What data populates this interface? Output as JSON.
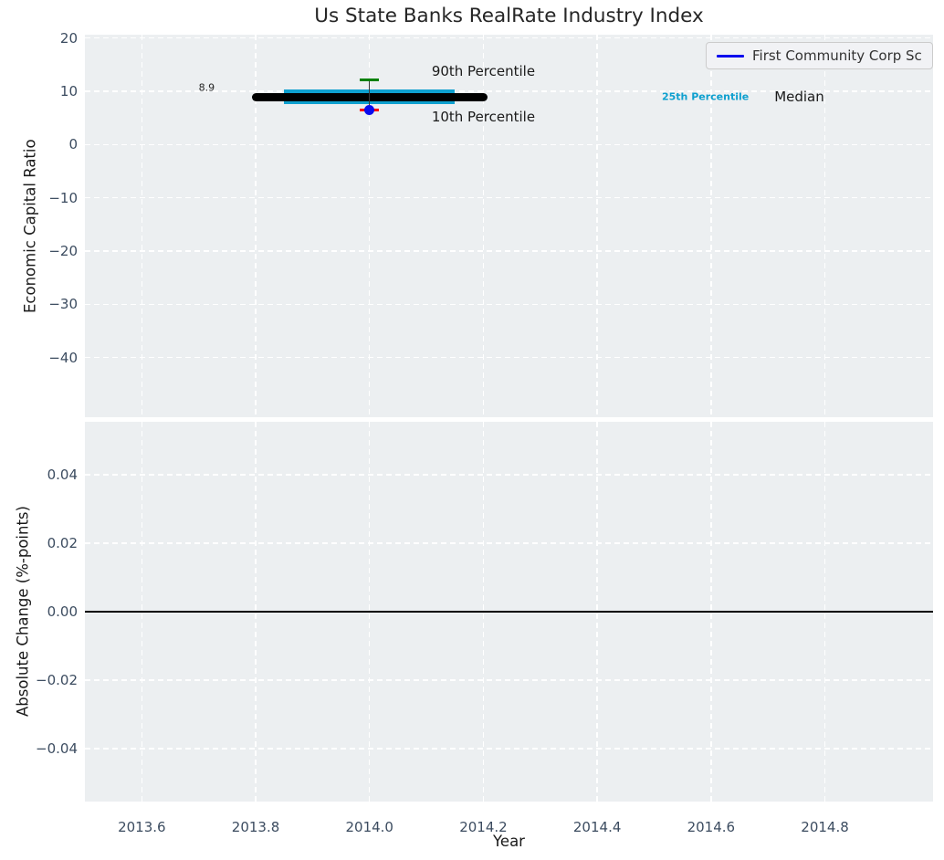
{
  "title": "Us State Banks RealRate Industry Index",
  "legend": {
    "position": "upper-right",
    "entries": [
      {
        "label": "First Community Corp Sc",
        "color": "#0b0bee",
        "marker": "line"
      }
    ]
  },
  "colors": {
    "plot_background": "#eceff1",
    "grid": "#ffffff",
    "tick_label": "#3c4c60",
    "axis_label": "#1a1a1a",
    "title": "#262626",
    "median": "#000000",
    "percentile_band": "#0ea0cf",
    "p90_cap": "#008000",
    "p10_cap": "#ff0000",
    "company_marker": "#0b0bee",
    "zero_line": "#000000"
  },
  "chart_data": [
    {
      "type": "errorbar",
      "panel": "top",
      "title": "Us State Banks RealRate Industry Index",
      "ylabel": "Economic Capital Ratio",
      "grid": true,
      "legend_position": "upper-right",
      "xlim": [
        2013.5,
        2014.99
      ],
      "ylim": [
        -51.2,
        20.6
      ],
      "xticks": [
        {
          "value": 2013.6,
          "label": "2013.6"
        },
        {
          "value": 2013.8,
          "label": "2013.8"
        },
        {
          "value": 2014.0,
          "label": "2014.0"
        },
        {
          "value": 2014.2,
          "label": "2014.2"
        },
        {
          "value": 2014.4,
          "label": "2014.4"
        },
        {
          "value": 2014.6,
          "label": "2014.6"
        },
        {
          "value": 2014.8,
          "label": "2014.8"
        }
      ],
      "show_xtick_labels": false,
      "yticks": [
        {
          "value": 20,
          "label": "20"
        },
        {
          "value": 10,
          "label": "10"
        },
        {
          "value": 0,
          "label": "0"
        },
        {
          "value": -10,
          "label": "−10"
        },
        {
          "value": -20,
          "label": "−20"
        },
        {
          "value": -30,
          "label": "−30"
        },
        {
          "value": -40,
          "label": "−40"
        }
      ],
      "marks": {
        "median_line": {
          "label": "Median",
          "y": 8.9,
          "x0": 2013.8,
          "x1": 2014.2,
          "color": "#000000",
          "thickness_px": 9,
          "cap": "round"
        },
        "percentile_band": {
          "label": "25th Percentile",
          "y": 8.9,
          "x0": 2013.85,
          "x1": 2014.15,
          "color": "#0ea0cf",
          "thickness_px": 16,
          "cap": "butt"
        },
        "company_errorbar": {
          "name": "First Community Corp Sc",
          "x": 2014.0,
          "y": 6.5,
          "whisker_top": {
            "y": 12.1,
            "color": "#008000",
            "meaning": "90th Percentile"
          },
          "whisker_bottom": {
            "y": 6.5,
            "color": "#ff0000",
            "meaning": "10th Percentile"
          },
          "line_color": "#3a3a3a",
          "marker_color": "#0b0bee",
          "marker_size_px": 11
        }
      },
      "annotations": [
        {
          "text": "8.9",
          "x": 2013.714,
          "y": 10.66,
          "color": "#262626",
          "size": 11,
          "weight": "normal"
        },
        {
          "text": "90th Percentile",
          "x": 2014.2,
          "y": 13.7,
          "color": "#1a1a1a",
          "size": 15,
          "weight": "normal"
        },
        {
          "text": "10th Percentile",
          "x": 2014.2,
          "y": 5.2,
          "color": "#1a1a1a",
          "size": 15,
          "weight": "normal"
        },
        {
          "text": "25th Percentile",
          "x": 2014.59,
          "y": 9.0,
          "color": "#0ea0cf",
          "size": 11,
          "weight": "bold"
        },
        {
          "text": "Median",
          "x": 2014.755,
          "y": 9.0,
          "color": "#1a1a1a",
          "size": 15,
          "weight": "normal"
        }
      ]
    },
    {
      "type": "line",
      "panel": "bottom",
      "ylabel": "Absolute Change (%-points)",
      "xlabel": "Year",
      "grid": true,
      "xlim": [
        2013.5,
        2014.99
      ],
      "ylim": [
        -0.0555,
        0.0555
      ],
      "xticks": [
        {
          "value": 2013.6,
          "label": "2013.6"
        },
        {
          "value": 2013.8,
          "label": "2013.8"
        },
        {
          "value": 2014.0,
          "label": "2014.0"
        },
        {
          "value": 2014.2,
          "label": "2014.2"
        },
        {
          "value": 2014.4,
          "label": "2014.4"
        },
        {
          "value": 2014.6,
          "label": "2014.6"
        },
        {
          "value": 2014.8,
          "label": "2014.8"
        }
      ],
      "show_xtick_labels": true,
      "yticks": [
        {
          "value": 0.04,
          "label": "0.04"
        },
        {
          "value": 0.02,
          "label": "0.02"
        },
        {
          "value": 0,
          "label": "0.00"
        },
        {
          "value": -0.02,
          "label": "−0.02"
        },
        {
          "value": -0.04,
          "label": "−0.04"
        }
      ],
      "zero_line": {
        "y": 0.0,
        "color": "#000000",
        "thickness_px": 1.8
      },
      "series": []
    }
  ]
}
